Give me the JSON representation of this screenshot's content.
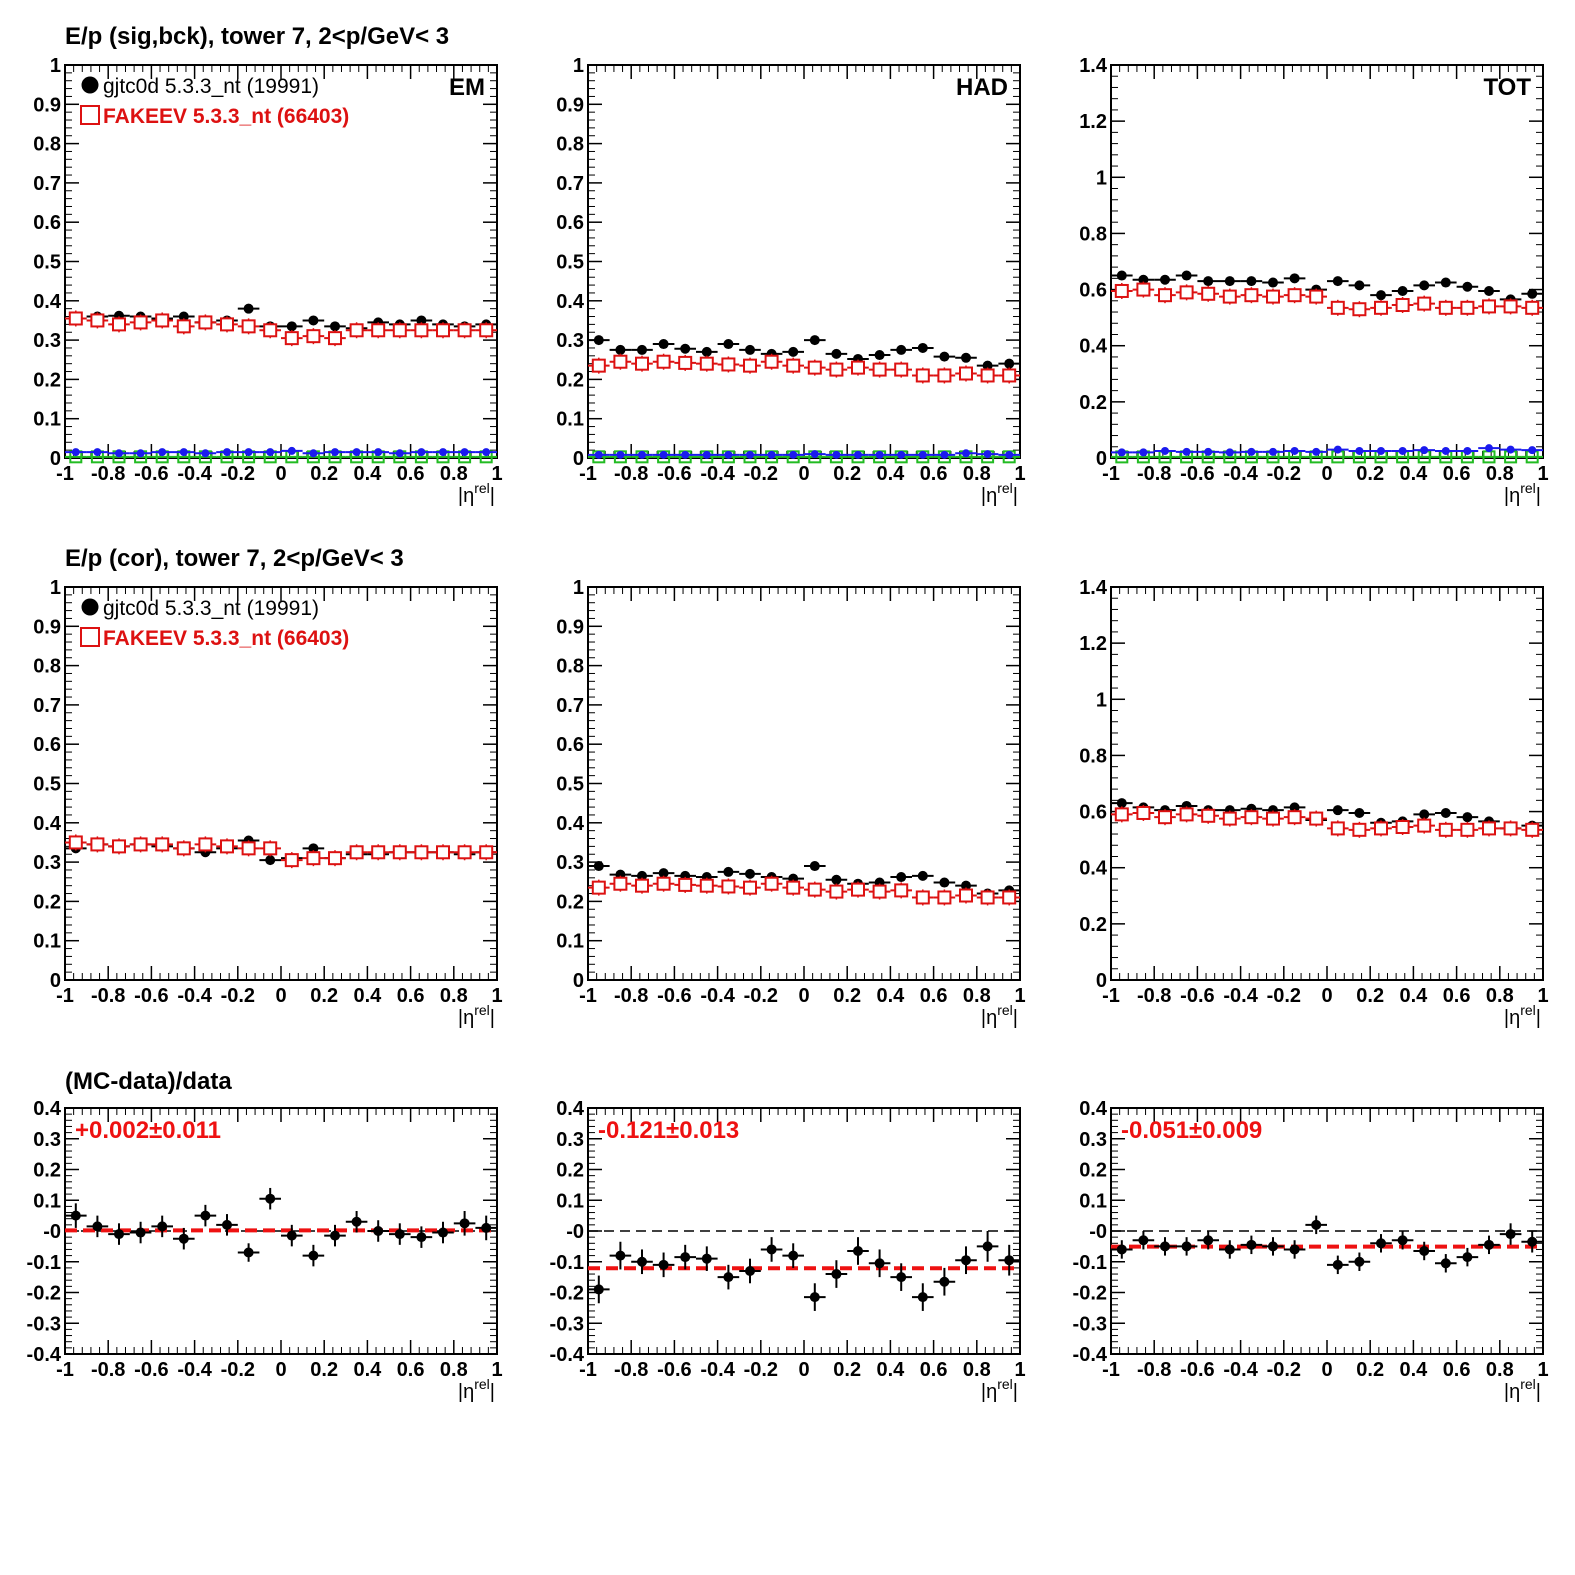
{
  "row_titles": [
    "E/p (sig,bck), tower 7,  2<p/GeV< 3",
    "E/p (cor), tower 7,  2<p/GeV< 3",
    "(MC-data)/data"
  ],
  "legend": [
    {
      "label": "gjtc0d 5.3.3_nt (19991)",
      "color": "#000000",
      "marker": "filled-circle"
    },
    {
      "label": "FAKEEV 5.3.3_nt (66403)",
      "color": "#dd1111",
      "marker": "open-square"
    }
  ],
  "colors": {
    "data": "#000000",
    "mc": "#dd1111",
    "bkg_data": "#1a1aee",
    "bkg_mc": "#22bb22",
    "fit": "#ee1111"
  },
  "x_axis": {
    "label": "|η^rel|",
    "ticks": [
      "-1",
      "-0.8",
      "-0.6",
      "-0.4",
      "-0.2",
      "0",
      "0.2",
      "0.4",
      "0.6",
      "0.8",
      "1"
    ],
    "xlim": [
      -1,
      1
    ]
  },
  "chart_data": [
    {
      "id": "r1c1",
      "type": "scatter",
      "panel_label": "EM",
      "ylim": [
        0,
        1
      ],
      "yticks": [
        "0",
        "0.1",
        "0.2",
        "0.3",
        "0.4",
        "0.5",
        "0.6",
        "0.7",
        "0.8",
        "0.9",
        "1"
      ],
      "x": [
        -0.95,
        -0.85,
        -0.75,
        -0.65,
        -0.55,
        -0.45,
        -0.35,
        -0.25,
        -0.15,
        -0.05,
        0.05,
        0.15,
        0.25,
        0.35,
        0.45,
        0.55,
        0.65,
        0.75,
        0.85,
        0.95
      ],
      "series": [
        {
          "name": "gjtc0d 5.3.3_nt (19991)",
          "values": [
            0.355,
            0.36,
            0.362,
            0.36,
            0.355,
            0.36,
            0.345,
            0.35,
            0.38,
            0.335,
            0.335,
            0.35,
            0.335,
            0.33,
            0.345,
            0.34,
            0.35,
            0.34,
            0.335,
            0.34
          ]
        },
        {
          "name": "FAKEEV 5.3.3_nt (66403)",
          "values": [
            0.355,
            0.35,
            0.34,
            0.345,
            0.35,
            0.335,
            0.345,
            0.34,
            0.335,
            0.325,
            0.305,
            0.31,
            0.305,
            0.325,
            0.325,
            0.325,
            0.325,
            0.325,
            0.325,
            0.325
          ]
        },
        {
          "name": "background data",
          "values": [
            0.015,
            0.015,
            0.012,
            0.012,
            0.015,
            0.015,
            0.012,
            0.015,
            0.015,
            0.015,
            0.018,
            0.012,
            0.015,
            0.015,
            0.015,
            0.012,
            0.015,
            0.015,
            0.015,
            0.015
          ]
        },
        {
          "name": "background MC",
          "values": [
            0.003,
            0.003,
            0.003,
            0.003,
            0.003,
            0.003,
            0.003,
            0.003,
            0.003,
            0.003,
            0.003,
            0.003,
            0.003,
            0.003,
            0.003,
            0.003,
            0.003,
            0.003,
            0.003,
            0.003
          ]
        }
      ]
    },
    {
      "id": "r1c2",
      "type": "scatter",
      "panel_label": "HAD",
      "ylim": [
        0,
        1
      ],
      "yticks": [
        "0",
        "0.1",
        "0.2",
        "0.3",
        "0.4",
        "0.5",
        "0.6",
        "0.7",
        "0.8",
        "0.9",
        "1"
      ],
      "x": [
        -0.95,
        -0.85,
        -0.75,
        -0.65,
        -0.55,
        -0.45,
        -0.35,
        -0.25,
        -0.15,
        -0.05,
        0.05,
        0.15,
        0.25,
        0.35,
        0.45,
        0.55,
        0.65,
        0.75,
        0.85,
        0.95
      ],
      "series": [
        {
          "name": "gjtc0d 5.3.3_nt (19991)",
          "values": [
            0.3,
            0.275,
            0.275,
            0.29,
            0.278,
            0.27,
            0.29,
            0.275,
            0.265,
            0.27,
            0.3,
            0.265,
            0.252,
            0.262,
            0.275,
            0.28,
            0.258,
            0.255,
            0.235,
            0.24
          ]
        },
        {
          "name": "FAKEEV 5.3.3_nt (66403)",
          "values": [
            0.235,
            0.245,
            0.24,
            0.245,
            0.242,
            0.24,
            0.238,
            0.235,
            0.245,
            0.235,
            0.23,
            0.225,
            0.23,
            0.225,
            0.225,
            0.21,
            0.21,
            0.215,
            0.21,
            0.21
          ]
        },
        {
          "name": "background data",
          "values": [
            0.008,
            0.008,
            0.008,
            0.008,
            0.008,
            0.008,
            0.008,
            0.008,
            0.008,
            0.008,
            0.01,
            0.008,
            0.008,
            0.008,
            0.008,
            0.008,
            0.008,
            0.012,
            0.01,
            0.008
          ]
        },
        {
          "name": "background MC",
          "values": [
            0.003,
            0.003,
            0.003,
            0.003,
            0.003,
            0.003,
            0.003,
            0.003,
            0.003,
            0.003,
            0.003,
            0.003,
            0.003,
            0.003,
            0.003,
            0.003,
            0.003,
            0.003,
            0.003,
            0.003
          ]
        }
      ]
    },
    {
      "id": "r1c3",
      "type": "scatter",
      "panel_label": "TOT",
      "ylim": [
        0,
        1.4
      ],
      "yticks": [
        "0",
        "0.2",
        "0.4",
        "0.6",
        "0.8",
        "1",
        "1.2",
        "1.4"
      ],
      "x": [
        -0.95,
        -0.85,
        -0.75,
        -0.65,
        -0.55,
        -0.45,
        -0.35,
        -0.25,
        -0.15,
        -0.05,
        0.05,
        0.15,
        0.25,
        0.35,
        0.45,
        0.55,
        0.65,
        0.75,
        0.85,
        0.95
      ],
      "series": [
        {
          "name": "gjtc0d 5.3.3_nt (19991)",
          "values": [
            0.65,
            0.635,
            0.635,
            0.65,
            0.63,
            0.63,
            0.63,
            0.625,
            0.64,
            0.6,
            0.63,
            0.615,
            0.58,
            0.595,
            0.615,
            0.625,
            0.61,
            0.595,
            0.565,
            0.585
          ]
        },
        {
          "name": "FAKEEV 5.3.3_nt (66403)",
          "values": [
            0.595,
            0.6,
            0.58,
            0.59,
            0.585,
            0.575,
            0.58,
            0.575,
            0.58,
            0.575,
            0.535,
            0.53,
            0.535,
            0.545,
            0.55,
            0.535,
            0.535,
            0.54,
            0.54,
            0.535
          ]
        },
        {
          "name": "background data",
          "values": [
            0.02,
            0.02,
            0.025,
            0.022,
            0.022,
            0.02,
            0.022,
            0.022,
            0.025,
            0.022,
            0.03,
            0.025,
            0.025,
            0.025,
            0.028,
            0.025,
            0.025,
            0.035,
            0.03,
            0.028
          ]
        },
        {
          "name": "background MC",
          "values": [
            0.004,
            0.004,
            0.004,
            0.004,
            0.004,
            0.004,
            0.004,
            0.004,
            0.004,
            0.004,
            0.004,
            0.004,
            0.004,
            0.004,
            0.004,
            0.004,
            0.004,
            0.004,
            0.004,
            0.004
          ]
        }
      ]
    },
    {
      "id": "r2c1",
      "type": "scatter",
      "panel_label": "",
      "ylim": [
        0,
        1
      ],
      "yticks": [
        "0",
        "0.1",
        "0.2",
        "0.3",
        "0.4",
        "0.5",
        "0.6",
        "0.7",
        "0.8",
        "0.9",
        "1"
      ],
      "x": [
        -0.95,
        -0.85,
        -0.75,
        -0.65,
        -0.55,
        -0.45,
        -0.35,
        -0.25,
        -0.15,
        -0.05,
        0.05,
        0.15,
        0.25,
        0.35,
        0.45,
        0.55,
        0.65,
        0.75,
        0.85,
        0.95
      ],
      "series": [
        {
          "name": "gjtc0d 5.3.3_nt (19991)",
          "values": [
            0.335,
            0.345,
            0.34,
            0.345,
            0.34,
            0.335,
            0.325,
            0.335,
            0.355,
            0.305,
            0.31,
            0.335,
            0.31,
            0.32,
            0.32,
            0.325,
            0.325,
            0.325,
            0.32,
            0.325
          ]
        },
        {
          "name": "FAKEEV 5.3.3_nt (66403)",
          "values": [
            0.35,
            0.345,
            0.34,
            0.345,
            0.345,
            0.335,
            0.345,
            0.34,
            0.335,
            0.335,
            0.305,
            0.31,
            0.31,
            0.325,
            0.325,
            0.325,
            0.325,
            0.325,
            0.325,
            0.325
          ]
        }
      ]
    },
    {
      "id": "r2c2",
      "type": "scatter",
      "panel_label": "",
      "ylim": [
        0,
        1
      ],
      "yticks": [
        "0",
        "0.1",
        "0.2",
        "0.3",
        "0.4",
        "0.5",
        "0.6",
        "0.7",
        "0.8",
        "0.9",
        "1"
      ],
      "x": [
        -0.95,
        -0.85,
        -0.75,
        -0.65,
        -0.55,
        -0.45,
        -0.35,
        -0.25,
        -0.15,
        -0.05,
        0.05,
        0.15,
        0.25,
        0.35,
        0.45,
        0.55,
        0.65,
        0.75,
        0.85,
        0.95
      ],
      "series": [
        {
          "name": "gjtc0d 5.3.3_nt (19991)",
          "values": [
            0.29,
            0.268,
            0.265,
            0.272,
            0.265,
            0.262,
            0.275,
            0.27,
            0.262,
            0.258,
            0.29,
            0.255,
            0.245,
            0.248,
            0.262,
            0.265,
            0.248,
            0.24,
            0.22,
            0.228
          ]
        },
        {
          "name": "FAKEEV 5.3.3_nt (66403)",
          "values": [
            0.235,
            0.245,
            0.24,
            0.245,
            0.242,
            0.24,
            0.238,
            0.235,
            0.245,
            0.235,
            0.23,
            0.225,
            0.23,
            0.225,
            0.228,
            0.21,
            0.21,
            0.215,
            0.21,
            0.21
          ]
        }
      ]
    },
    {
      "id": "r2c3",
      "type": "scatter",
      "panel_label": "",
      "ylim": [
        0,
        1.4
      ],
      "yticks": [
        "0",
        "0.2",
        "0.4",
        "0.6",
        "0.8",
        "1",
        "1.2",
        "1.4"
      ],
      "x": [
        -0.95,
        -0.85,
        -0.75,
        -0.65,
        -0.55,
        -0.45,
        -0.35,
        -0.25,
        -0.15,
        -0.05,
        0.05,
        0.15,
        0.25,
        0.35,
        0.45,
        0.55,
        0.65,
        0.75,
        0.85,
        0.95
      ],
      "series": [
        {
          "name": "gjtc0d 5.3.3_nt (19991)",
          "values": [
            0.63,
            0.615,
            0.605,
            0.62,
            0.605,
            0.605,
            0.61,
            0.605,
            0.615,
            0.57,
            0.605,
            0.595,
            0.56,
            0.565,
            0.59,
            0.595,
            0.58,
            0.565,
            0.54,
            0.55
          ]
        },
        {
          "name": "FAKEEV 5.3.3_nt (66403)",
          "values": [
            0.59,
            0.595,
            0.58,
            0.59,
            0.585,
            0.575,
            0.58,
            0.575,
            0.58,
            0.575,
            0.54,
            0.535,
            0.54,
            0.545,
            0.55,
            0.535,
            0.535,
            0.54,
            0.54,
            0.535
          ]
        }
      ]
    },
    {
      "id": "r3c1",
      "type": "scatter",
      "panel_label": "",
      "ylim": [
        -0.4,
        0.4
      ],
      "yticks": [
        "-0.4",
        "-0.3",
        "-0.2",
        "-0.1",
        "-0",
        "0.1",
        "0.2",
        "0.3",
        "0.4"
      ],
      "x": [
        -0.95,
        -0.85,
        -0.75,
        -0.65,
        -0.55,
        -0.45,
        -0.35,
        -0.25,
        -0.15,
        -0.05,
        0.05,
        0.15,
        0.25,
        0.35,
        0.45,
        0.55,
        0.65,
        0.75,
        0.85,
        0.95
      ],
      "fit_text": "+0.002±0.011",
      "fit_value": 0.002,
      "series": [
        {
          "name": "(MC-data)/data",
          "values": [
            0.05,
            0.015,
            -0.01,
            -0.005,
            0.015,
            -0.025,
            0.05,
            0.02,
            -0.07,
            0.105,
            -0.015,
            -0.08,
            -0.015,
            0.03,
            0.0,
            -0.01,
            -0.02,
            -0.005,
            0.025,
            0.01
          ],
          "errors": [
            0.04,
            0.035,
            0.035,
            0.035,
            0.035,
            0.035,
            0.035,
            0.035,
            0.03,
            0.035,
            0.035,
            0.035,
            0.035,
            0.035,
            0.035,
            0.035,
            0.035,
            0.035,
            0.04,
            0.04
          ]
        }
      ]
    },
    {
      "id": "r3c2",
      "type": "scatter",
      "panel_label": "",
      "ylim": [
        -0.4,
        0.4
      ],
      "yticks": [
        "-0.4",
        "-0.3",
        "-0.2",
        "-0.1",
        "-0",
        "0.1",
        "0.2",
        "0.3",
        "0.4"
      ],
      "x": [
        -0.95,
        -0.85,
        -0.75,
        -0.65,
        -0.55,
        -0.45,
        -0.35,
        -0.25,
        -0.15,
        -0.05,
        0.05,
        0.15,
        0.25,
        0.35,
        0.45,
        0.55,
        0.65,
        0.75,
        0.85,
        0.95
      ],
      "fit_text": "-0.121±0.013",
      "fit_value": -0.121,
      "series": [
        {
          "name": "(MC-data)/data",
          "values": [
            -0.19,
            -0.08,
            -0.1,
            -0.11,
            -0.085,
            -0.09,
            -0.15,
            -0.13,
            -0.06,
            -0.08,
            -0.215,
            -0.14,
            -0.065,
            -0.105,
            -0.15,
            -0.215,
            -0.165,
            -0.095,
            -0.05,
            -0.095
          ],
          "errors": [
            0.045,
            0.045,
            0.04,
            0.04,
            0.04,
            0.04,
            0.04,
            0.04,
            0.04,
            0.04,
            0.045,
            0.045,
            0.045,
            0.045,
            0.045,
            0.045,
            0.045,
            0.045,
            0.05,
            0.05
          ]
        }
      ]
    },
    {
      "id": "r3c3",
      "type": "scatter",
      "panel_label": "",
      "ylim": [
        -0.4,
        0.4
      ],
      "yticks": [
        "-0.4",
        "-0.3",
        "-0.2",
        "-0.1",
        "-0",
        "0.1",
        "0.2",
        "0.3",
        "0.4"
      ],
      "x": [
        -0.95,
        -0.85,
        -0.75,
        -0.65,
        -0.55,
        -0.45,
        -0.35,
        -0.25,
        -0.15,
        -0.05,
        0.05,
        0.15,
        0.25,
        0.35,
        0.45,
        0.55,
        0.65,
        0.75,
        0.85,
        0.95
      ],
      "fit_text": "-0.051±0.009",
      "fit_value": -0.051,
      "series": [
        {
          "name": "(MC-data)/data",
          "values": [
            -0.06,
            -0.03,
            -0.05,
            -0.05,
            -0.03,
            -0.06,
            -0.045,
            -0.05,
            -0.06,
            0.02,
            -0.11,
            -0.1,
            -0.04,
            -0.03,
            -0.065,
            -0.105,
            -0.085,
            -0.045,
            -0.01,
            -0.035
          ],
          "errors": [
            0.03,
            0.03,
            0.03,
            0.03,
            0.03,
            0.03,
            0.03,
            0.03,
            0.03,
            0.03,
            0.03,
            0.03,
            0.03,
            0.03,
            0.03,
            0.03,
            0.03,
            0.03,
            0.035,
            0.035
          ]
        }
      ]
    }
  ]
}
